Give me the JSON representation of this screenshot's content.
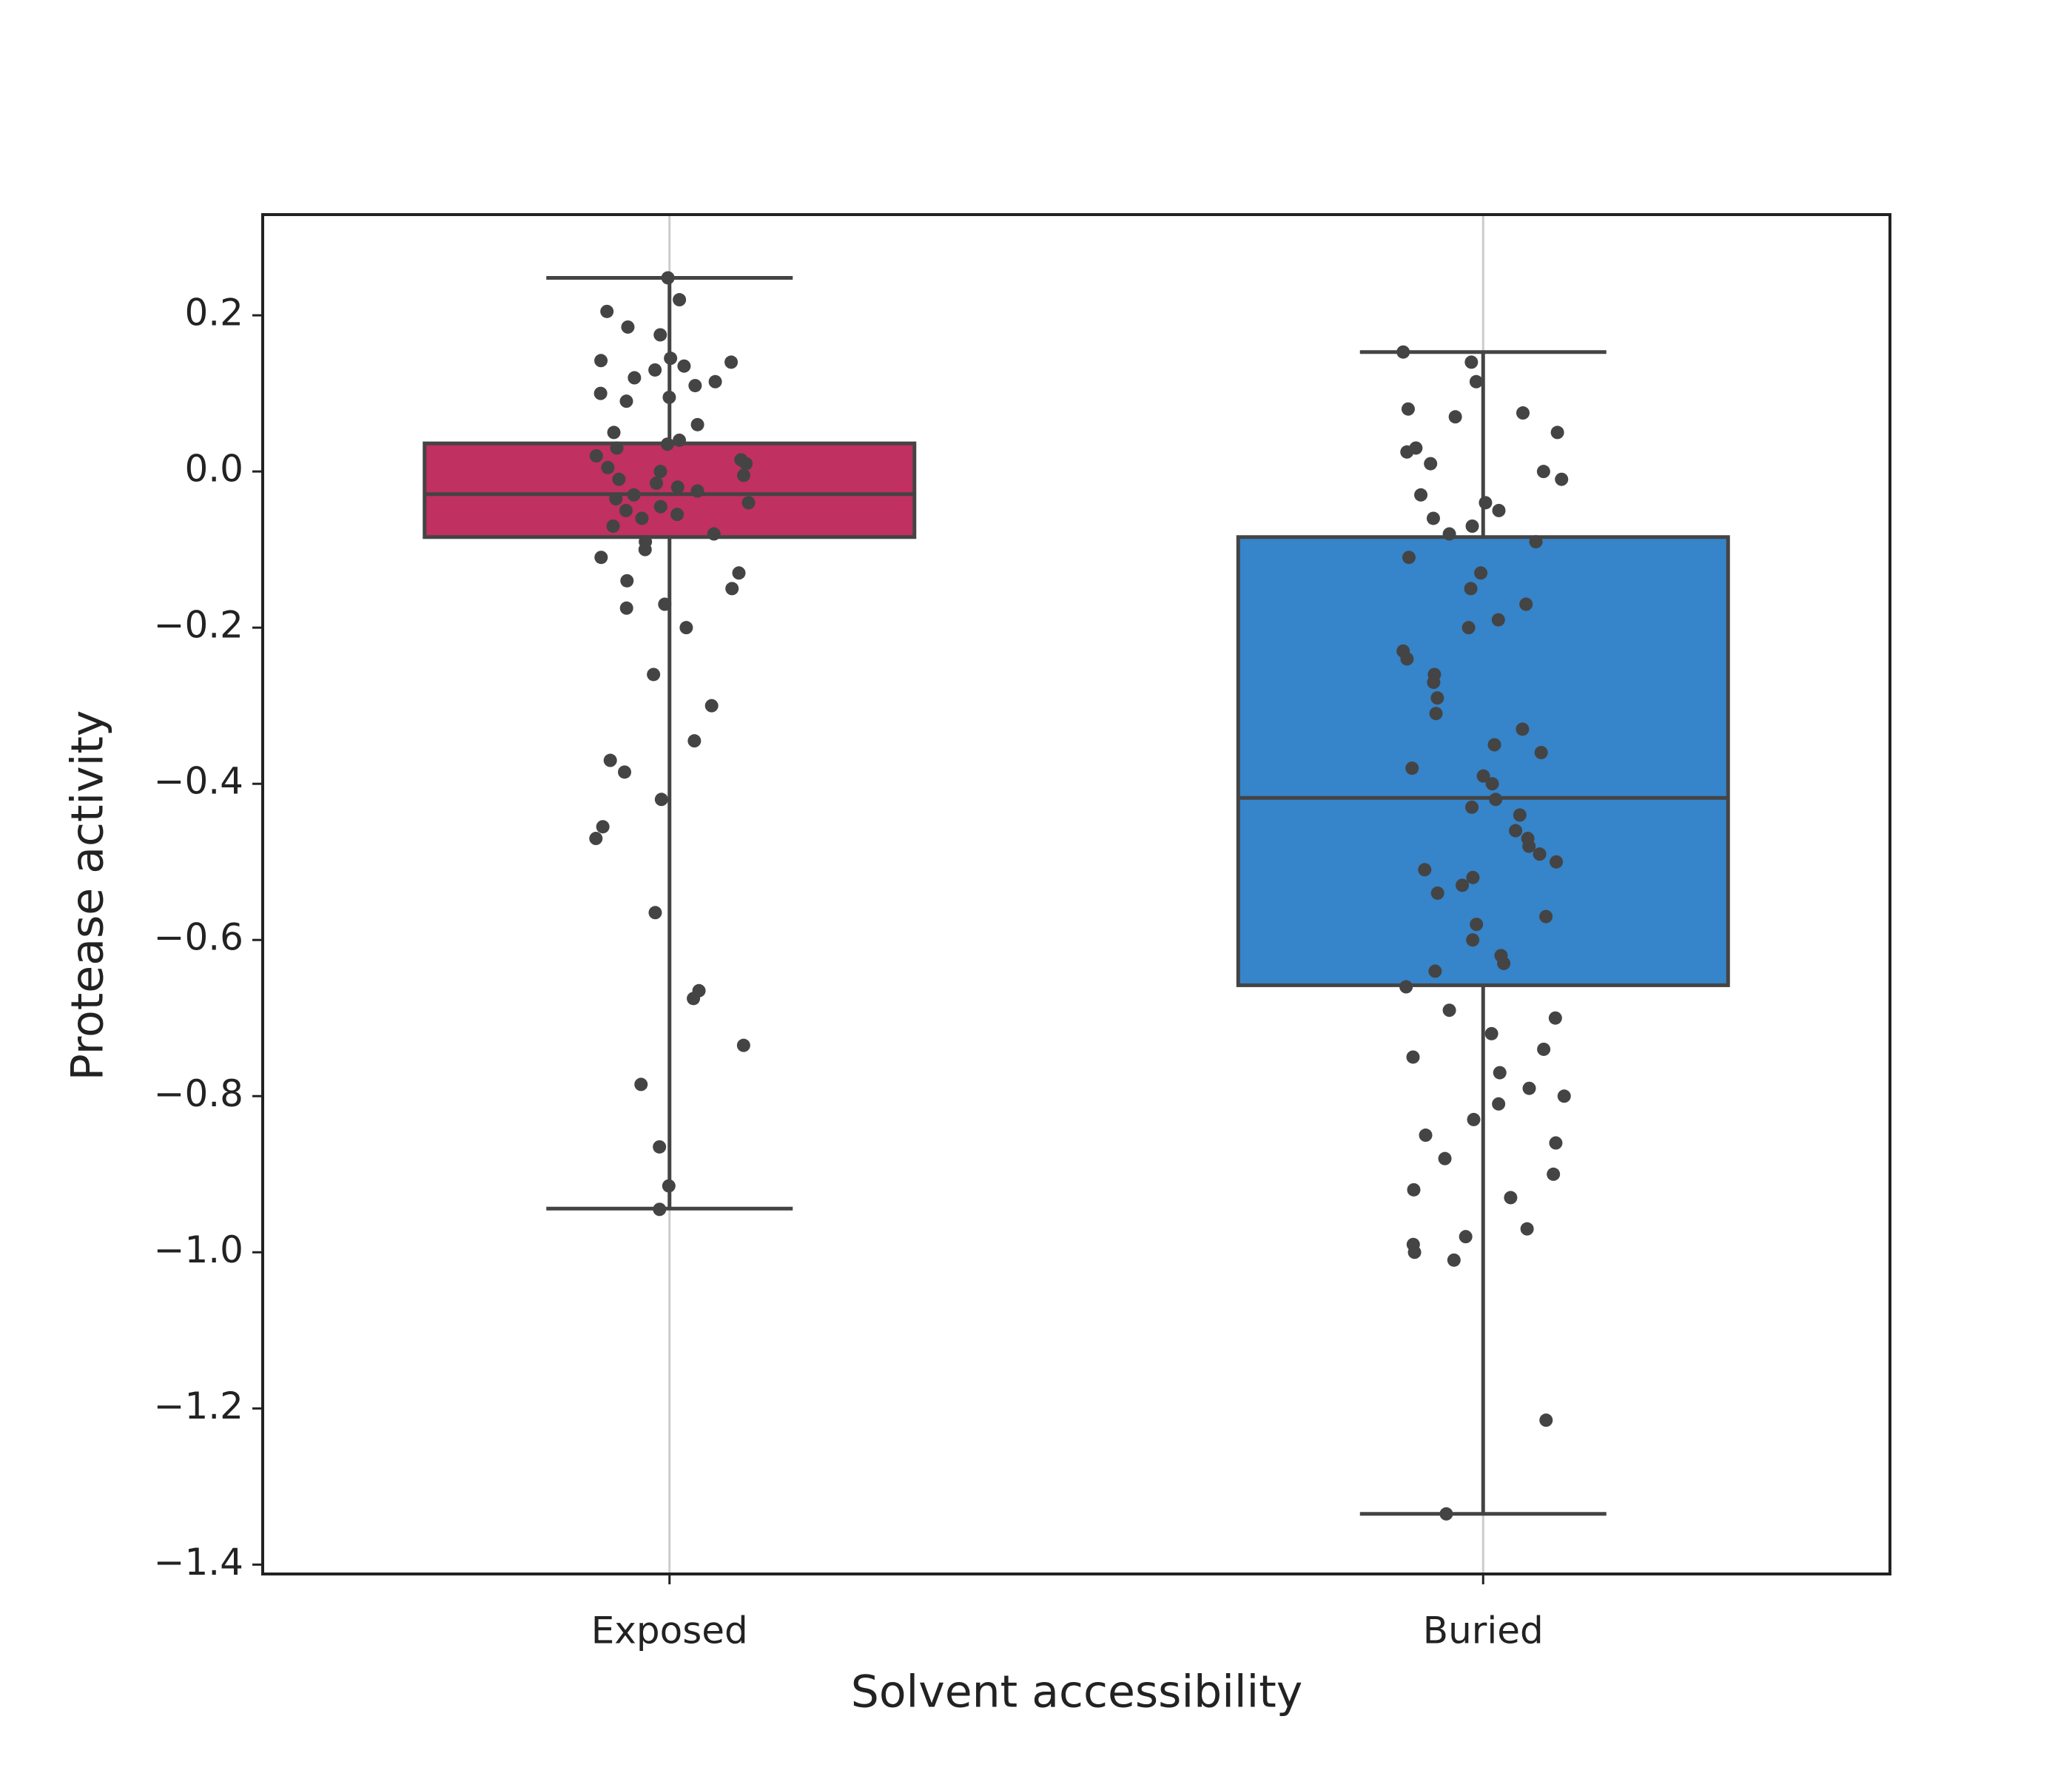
{
  "chart_data": {
    "type": "box",
    "xlabel": "Solvent accessibility",
    "ylabel": "Protease activity",
    "categories": [
      "Exposed",
      "Buried"
    ],
    "colors": [
      "#c03060",
      "#3684c9"
    ],
    "whisker_low": [
      -0.944,
      -1.335
    ],
    "q1": [
      -0.084,
      -0.658
    ],
    "median": [
      -0.029,
      -0.418
    ],
    "q3": [
      0.036,
      -0.084
    ],
    "whisker_high": [
      0.248,
      0.153
    ],
    "points": [
      [
        0.248,
        0.22,
        0.205,
        0.185,
        0.175,
        0.145,
        0.142,
        0.14,
        0.135,
        0.13,
        0.12,
        0.115,
        0.11,
        0.1,
        0.095,
        0.09,
        0.06,
        0.05,
        0.04,
        0.035,
        0.03,
        0.02,
        0.015,
        0.01,
        0.005,
        0,
        -0.005,
        -0.01,
        -0.015,
        -0.02,
        -0.025,
        -0.03,
        -0.035,
        -0.04,
        -0.045,
        -0.05,
        -0.055,
        -0.06,
        -0.07,
        -0.08,
        -0.09,
        -0.1,
        -0.11,
        -0.13,
        -0.14,
        -0.15,
        -0.17,
        -0.175,
        -0.2,
        -0.26,
        -0.3,
        -0.345,
        -0.37,
        -0.385,
        -0.42,
        -0.455,
        -0.47,
        -0.565,
        -0.665,
        -0.675,
        -0.735,
        -0.785,
        -0.865,
        -0.915,
        -0.945
      ],
      [
        0.153,
        0.14,
        0.115,
        0.08,
        0.075,
        0.07,
        0.05,
        0.03,
        0.025,
        0.01,
        0,
        -0.01,
        -0.03,
        -0.04,
        -0.05,
        -0.06,
        -0.07,
        -0.08,
        -0.09,
        -0.11,
        -0.13,
        -0.15,
        -0.17,
        -0.19,
        -0.2,
        -0.23,
        -0.24,
        -0.26,
        -0.27,
        -0.29,
        -0.31,
        -0.33,
        -0.35,
        -0.36,
        -0.38,
        -0.39,
        -0.4,
        -0.42,
        -0.43,
        -0.44,
        -0.46,
        -0.47,
        -0.48,
        -0.49,
        -0.5,
        -0.51,
        -0.52,
        -0.53,
        -0.54,
        -0.57,
        -0.58,
        -0.6,
        -0.62,
        -0.63,
        -0.64,
        -0.66,
        -0.69,
        -0.7,
        -0.72,
        -0.74,
        -0.75,
        -0.77,
        -0.79,
        -0.8,
        -0.81,
        -0.83,
        -0.85,
        -0.86,
        -0.88,
        -0.9,
        -0.92,
        -0.93,
        -0.97,
        -0.98,
        -0.99,
        -1.0,
        -1.01,
        -1.215,
        -1.335
      ]
    ],
    "point_color": "#444444",
    "ylim": [
      -1.412,
      0.329
    ],
    "yticks": [
      {
        "value": -1.4,
        "label": "−1.4"
      },
      {
        "value": -1.2,
        "label": "−1.2"
      },
      {
        "value": -1.0,
        "label": "−1.0"
      },
      {
        "value": -0.8,
        "label": "−0.8"
      },
      {
        "value": -0.6,
        "label": "−0.6"
      },
      {
        "value": -0.4,
        "label": "−0.4"
      },
      {
        "value": -0.2,
        "label": "−0.2"
      },
      {
        "value": 0,
        "label": "0.0"
      },
      0.2
    ],
    "grid": true
  }
}
